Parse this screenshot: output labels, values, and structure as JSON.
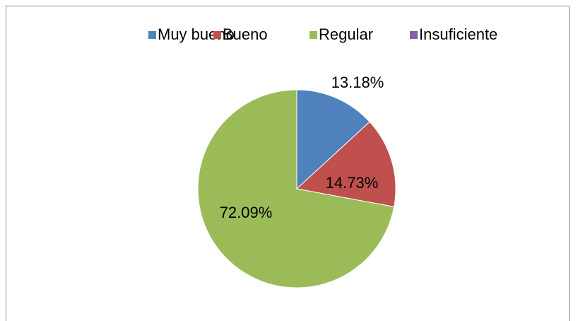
{
  "chart_data": {
    "type": "pie",
    "categories": [
      "Muy bueno",
      "Bueno",
      "Regular",
      "Insuficiente"
    ],
    "values": [
      13.18,
      14.73,
      72.09,
      0
    ],
    "value_labels": [
      "13.18%",
      "14.73%",
      "72.09%",
      null
    ],
    "colors": [
      "#4f81bd",
      "#c0504d",
      "#9bbb59",
      "#8064a2"
    ],
    "legend": "top"
  }
}
